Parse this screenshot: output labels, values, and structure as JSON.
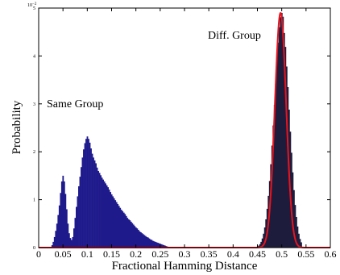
{
  "chart_data": {
    "type": "bar",
    "xlabel": "Fractional Hamming Distance",
    "ylabel": "Probability",
    "y_exponent": "10^-2",
    "xlim": [
      0,
      0.6
    ],
    "ylim": [
      0,
      0.05
    ],
    "x_ticks": [
      "0",
      "0.05",
      "0.1",
      "0.15",
      "0.2",
      "0.25",
      "0.3",
      "0.35",
      "0.4",
      "0.45",
      "0.5",
      "0.55",
      "0.6"
    ],
    "y_ticks": [
      "0",
      "1",
      "2",
      "3",
      "4",
      "5"
    ],
    "annotations": [
      {
        "text": "Same Group"
      },
      {
        "text": "Diff. Group"
      }
    ],
    "colors": {
      "same_group_bars": "#1f1a8c",
      "diff_group_bars": "#1e1c3c",
      "fit_curve": "#e8141e"
    },
    "series": [
      {
        "name": "Same Group",
        "bin_width": 0.0025,
        "x": [
          0.0275,
          0.03,
          0.0325,
          0.035,
          0.0375,
          0.04,
          0.0425,
          0.045,
          0.0475,
          0.05,
          0.0525,
          0.055,
          0.0575,
          0.06,
          0.0625,
          0.065,
          0.0675,
          0.07,
          0.0725,
          0.075,
          0.0775,
          0.08,
          0.0825,
          0.085,
          0.0875,
          0.09,
          0.0925,
          0.095,
          0.0975,
          0.1,
          0.1025,
          0.105,
          0.1075,
          0.11,
          0.1125,
          0.115,
          0.1175,
          0.12,
          0.1225,
          0.125,
          0.1275,
          0.13,
          0.1325,
          0.135,
          0.1375,
          0.14,
          0.1425,
          0.145,
          0.1475,
          0.15,
          0.1525,
          0.155,
          0.1575,
          0.16,
          0.1625,
          0.165,
          0.1675,
          0.17,
          0.1725,
          0.175,
          0.1775,
          0.18,
          0.1825,
          0.185,
          0.1875,
          0.19,
          0.1925,
          0.195,
          0.1975,
          0.2,
          0.2025,
          0.205,
          0.2075,
          0.21,
          0.2125,
          0.215,
          0.2175,
          0.22,
          0.2225,
          0.225,
          0.2275,
          0.23,
          0.2325,
          0.235,
          0.2375,
          0.24,
          0.2425,
          0.245,
          0.2475,
          0.25,
          0.2525,
          0.255,
          0.2575,
          0.26,
          0.2625,
          0.265,
          0.2675,
          0.27
        ],
        "values": [
          0.0005,
          0.0012,
          0.0022,
          0.0035,
          0.005,
          0.0068,
          0.0088,
          0.0114,
          0.0138,
          0.015,
          0.0138,
          0.0112,
          0.008,
          0.005,
          0.003,
          0.002,
          0.0016,
          0.0022,
          0.004,
          0.0062,
          0.0085,
          0.0107,
          0.0128,
          0.0148,
          0.0168,
          0.0188,
          0.0205,
          0.0218,
          0.0227,
          0.0232,
          0.0227,
          0.0219,
          0.0207,
          0.0196,
          0.0188,
          0.0182,
          0.0176,
          0.0167,
          0.016,
          0.0156,
          0.0151,
          0.0146,
          0.0142,
          0.0138,
          0.0134,
          0.013,
          0.0126,
          0.0121,
          0.0116,
          0.0111,
          0.0107,
          0.0103,
          0.0099,
          0.0095,
          0.0091,
          0.0087,
          0.0083,
          0.0079,
          0.0076,
          0.0073,
          0.007,
          0.0066,
          0.0062,
          0.0059,
          0.0057,
          0.0054,
          0.0051,
          0.0048,
          0.0045,
          0.0042,
          0.004,
          0.0037,
          0.0034,
          0.0032,
          0.003,
          0.0028,
          0.0026,
          0.0024,
          0.0022,
          0.0021,
          0.0019,
          0.0017,
          0.0016,
          0.0014,
          0.0013,
          0.0012,
          0.0011,
          0.001,
          0.0009,
          0.0008,
          0.0007,
          0.0006,
          0.0005,
          0.0004,
          0.0003,
          0.0002,
          0.0001,
          0.0001
        ]
      },
      {
        "name": "Diff. Group",
        "bin_width": 0.0025,
        "x": [
          0.4475,
          0.45,
          0.4525,
          0.455,
          0.4575,
          0.46,
          0.4625,
          0.465,
          0.4675,
          0.47,
          0.4725,
          0.475,
          0.4775,
          0.48,
          0.4825,
          0.485,
          0.4875,
          0.49,
          0.4925,
          0.495,
          0.4975,
          0.5,
          0.5025,
          0.505,
          0.5075,
          0.51,
          0.5125,
          0.515,
          0.5175,
          0.52,
          0.5225,
          0.525,
          0.5275,
          0.53,
          0.5325,
          0.535,
          0.5375,
          0.54
        ],
        "values": [
          0.0001,
          0.0002,
          0.0004,
          0.0007,
          0.0012,
          0.0019,
          0.0029,
          0.0042,
          0.0059,
          0.0081,
          0.0108,
          0.0139,
          0.0174,
          0.0213,
          0.0255,
          0.0298,
          0.0342,
          0.0392,
          0.0428,
          0.046,
          0.0481,
          0.049,
          0.0482,
          0.0448,
          0.0419,
          0.0378,
          0.0335,
          0.0288,
          0.0242,
          0.0198,
          0.0157,
          0.012,
          0.0089,
          0.0064,
          0.0044,
          0.0029,
          0.0018,
          0.0011
        ]
      },
      {
        "name": "fit",
        "type": "line",
        "mean": 0.4975,
        "sd": 0.0117,
        "peak": 0.049
      }
    ]
  }
}
